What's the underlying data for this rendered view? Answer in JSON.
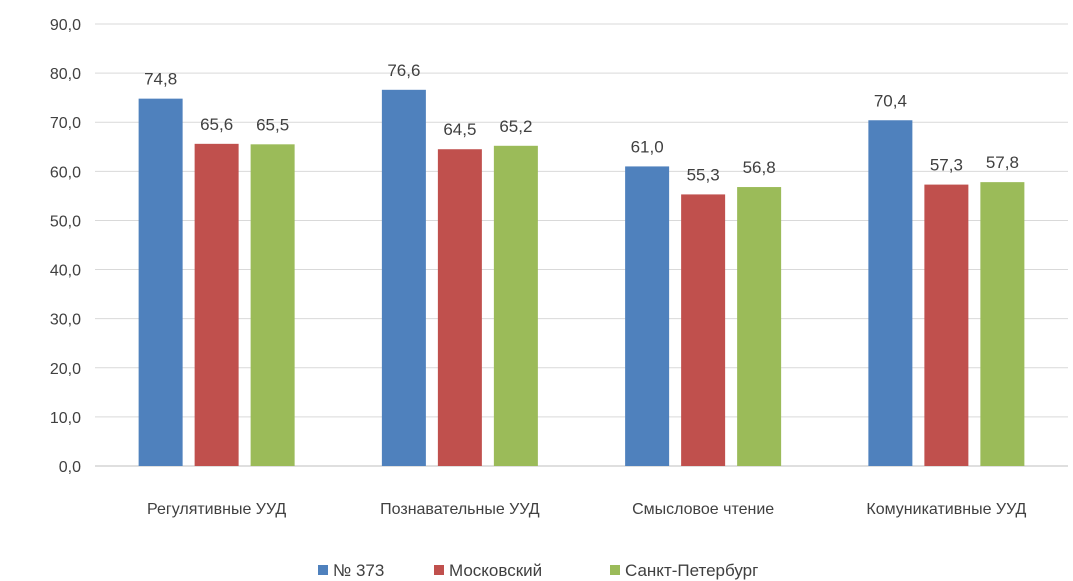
{
  "chart_data": {
    "type": "bar",
    "categories": [
      "Регулятивные УУД",
      "Познавательные УУД",
      "Смысловое чтение",
      "Комуникативные УУД"
    ],
    "series": [
      {
        "name": "№ 373",
        "values": [
          74.8,
          76.6,
          61.0,
          70.4
        ],
        "color": "#4F81BD"
      },
      {
        "name": "Московский",
        "values": [
          65.6,
          64.5,
          55.3,
          57.3
        ],
        "color": "#C0504D"
      },
      {
        "name": "Санкт-Петербург",
        "values": [
          65.5,
          65.2,
          56.8,
          57.8
        ],
        "color": "#9BBB59"
      }
    ],
    "data_labels": [
      [
        "74,8",
        "76,6",
        "61,0",
        "70,4"
      ],
      [
        "65,6",
        "64,5",
        "55,3",
        "57,3"
      ],
      [
        "65,5",
        "65,2",
        "56,8",
        "57,8"
      ]
    ],
    "y_ticks": [
      "0,0",
      "10,0",
      "20,0",
      "30,0",
      "40,0",
      "50,0",
      "60,0",
      "70,0",
      "80,0",
      "90,0"
    ],
    "ylim": [
      0,
      90
    ],
    "grid": true,
    "legend_position": "bottom",
    "title": "",
    "xlabel": "",
    "ylabel": ""
  }
}
